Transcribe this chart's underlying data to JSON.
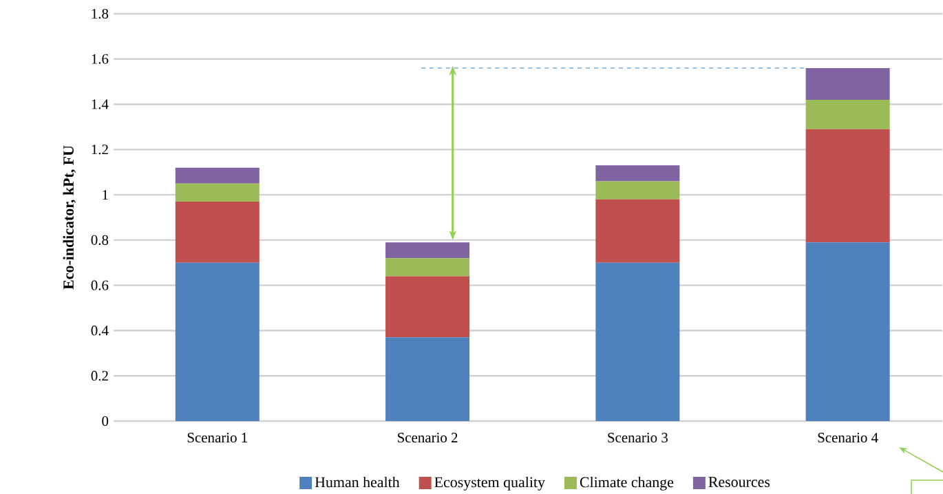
{
  "chart_data": {
    "type": "bar",
    "stacked": true,
    "ylabel": "Eco-indicator, kPt, FU",
    "categories": [
      "Scenario 1",
      "Scenario 2",
      "Scenario 3",
      "Scenario 4"
    ],
    "series": [
      {
        "name": "Human health",
        "color": "#4f81bd",
        "values": [
          0.7,
          0.37,
          0.7,
          0.79
        ]
      },
      {
        "name": "Ecosystem quality",
        "color": "#c0504d",
        "values": [
          0.27,
          0.27,
          0.28,
          0.5
        ]
      },
      {
        "name": "Climate change",
        "color": "#9bbb59",
        "values": [
          0.08,
          0.08,
          0.08,
          0.13
        ]
      },
      {
        "name": "Resources",
        "color": "#8064a2",
        "values": [
          0.07,
          0.07,
          0.07,
          0.14
        ]
      }
    ],
    "ylim": [
      0,
      1.8
    ],
    "yticks": [
      0,
      0.2,
      0.4,
      0.6,
      0.8,
      1,
      1.2,
      1.4,
      1.6,
      1.8
    ],
    "grid": "y",
    "legend": "bottom",
    "ref_lines": [
      {
        "axis": "y",
        "value": 1.56,
        "color": "#5b9bd5",
        "line_style": "dashed"
      }
    ]
  }
}
